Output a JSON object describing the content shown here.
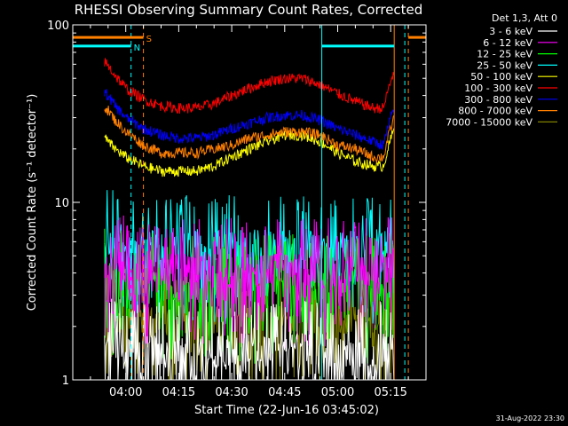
{
  "chart_data": {
    "type": "line",
    "title": "RHESSI Observing Summary Count Rates, Corrected",
    "xlabel": "Start Time (22-Jun-16 03:45:02)",
    "ylabel": "Corrected Count Rate (s⁻¹ detector⁻¹)",
    "y_scale": "log",
    "ylim": [
      1,
      100
    ],
    "xlim_minutes": [
      0,
      100
    ],
    "x_ticks": [
      {
        "label": "04:00",
        "minute": 15
      },
      {
        "label": "04:15",
        "minute": 30
      },
      {
        "label": "04:30",
        "minute": 45
      },
      {
        "label": "04:45",
        "minute": 60
      },
      {
        "label": "05:00",
        "minute": 75
      },
      {
        "label": "05:15",
        "minute": 90
      }
    ],
    "y_ticks": [
      {
        "label": "100",
        "value": 100
      },
      {
        "label": "10",
        "value": 10
      },
      {
        "label": "1",
        "value": 1
      }
    ],
    "legend_title": "Det 1,3, Att 0",
    "legend_position": "right",
    "series": [
      {
        "name": "3 - 6 keV",
        "color": "#ffffff",
        "minutes": [
          9,
          25,
          40,
          55,
          65,
          75,
          87,
          91
        ],
        "values": [
          1.6,
          1.5,
          1.5,
          1.5,
          1.5,
          1.5,
          1.5,
          1.6
        ]
      },
      {
        "name": "6 - 12 keV",
        "color": "#ff00ff",
        "minutes": [
          9,
          25,
          40,
          55,
          65,
          75,
          87,
          91
        ],
        "values": [
          4.5,
          4.3,
          4.3,
          4.3,
          4.3,
          4.3,
          4.3,
          4.6
        ]
      },
      {
        "name": "12 - 25 keV",
        "color": "#00ff00",
        "minutes": [
          9,
          25,
          40,
          55,
          65,
          75,
          87,
          91
        ],
        "values": [
          3.8,
          3.5,
          3.5,
          3.5,
          3.5,
          3.5,
          3.5,
          3.8
        ]
      },
      {
        "name": "25 - 50 keV",
        "color": "#00ffff",
        "minutes": [
          9,
          25,
          40,
          55,
          65,
          75,
          87,
          91
        ],
        "values": [
          6.5,
          5.8,
          5.8,
          5.8,
          5.8,
          5.8,
          5.8,
          6.2
        ]
      },
      {
        "name": "50 - 100 keV",
        "color": "#ffff00",
        "minutes": [
          9,
          12,
          15,
          20,
          25,
          30,
          35,
          40,
          45,
          50,
          55,
          60,
          65,
          70,
          75,
          80,
          85,
          88,
          91
        ],
        "values": [
          23,
          20,
          18,
          16,
          15,
          15,
          15,
          16,
          18,
          20,
          22,
          24,
          24,
          22,
          19,
          17,
          16,
          16,
          26
        ]
      },
      {
        "name": "100 - 300 keV",
        "color": "#ff0000",
        "minutes": [
          9,
          12,
          15,
          20,
          25,
          30,
          35,
          40,
          45,
          50,
          55,
          60,
          65,
          70,
          75,
          80,
          85,
          88,
          91
        ],
        "values": [
          62,
          52,
          44,
          38,
          35,
          34,
          34,
          36,
          40,
          44,
          48,
          50,
          50,
          46,
          41,
          37,
          34,
          34,
          55
        ]
      },
      {
        "name": "300 - 800 keV",
        "color": "#0000ff",
        "minutes": [
          9,
          12,
          15,
          20,
          25,
          30,
          35,
          40,
          45,
          50,
          55,
          60,
          65,
          70,
          75,
          80,
          85,
          88,
          91
        ],
        "values": [
          42,
          35,
          30,
          26,
          24,
          23,
          23,
          24,
          26,
          28,
          30,
          31,
          31,
          29,
          26,
          24,
          22,
          21,
          34
        ]
      },
      {
        "name": "800 - 7000 keV",
        "color": "#ff7f00",
        "minutes": [
          9,
          12,
          15,
          20,
          25,
          30,
          35,
          40,
          45,
          50,
          55,
          60,
          65,
          70,
          75,
          80,
          85,
          88,
          91
        ],
        "values": [
          35,
          29,
          25,
          21,
          19,
          19,
          19,
          20,
          21,
          23,
          24,
          25,
          25,
          24,
          21,
          20,
          18,
          18,
          30
        ]
      },
      {
        "name": "7000 - 15000 keV",
        "color": "#808000",
        "minutes": [
          9,
          25,
          40,
          55,
          65,
          75,
          87,
          91
        ],
        "values": [
          2.4,
          2.2,
          2.2,
          2.2,
          2.2,
          2.2,
          2.2,
          2.4
        ]
      }
    ],
    "state_bars": [
      {
        "label": "S",
        "color": "#ff7f00",
        "segments": [
          [
            0,
            20
          ],
          [
            95,
            100
          ]
        ],
        "value": 85
      },
      {
        "label": "N",
        "color": "#00ffff",
        "segments": [
          [
            0,
            16.5
          ],
          [
            70.5,
            91
          ]
        ],
        "value": 76
      }
    ],
    "vertical_lines": [
      {
        "minute": 16.5,
        "color": "#00ffff",
        "style": "dashed"
      },
      {
        "minute": 20,
        "color": "#ff7f00",
        "style": "dashed"
      },
      {
        "minute": 70.5,
        "color": "#00ffff",
        "style": "solid"
      },
      {
        "minute": 91,
        "color": "#ff7f00",
        "style": "solid"
      },
      {
        "minute": 94,
        "color": "#00ffff",
        "style": "dashed"
      },
      {
        "minute": 95,
        "color": "#ff7f00",
        "style": "dashed"
      }
    ]
  },
  "footer": {
    "timestamp": "31-Aug-2022 23:30"
  }
}
